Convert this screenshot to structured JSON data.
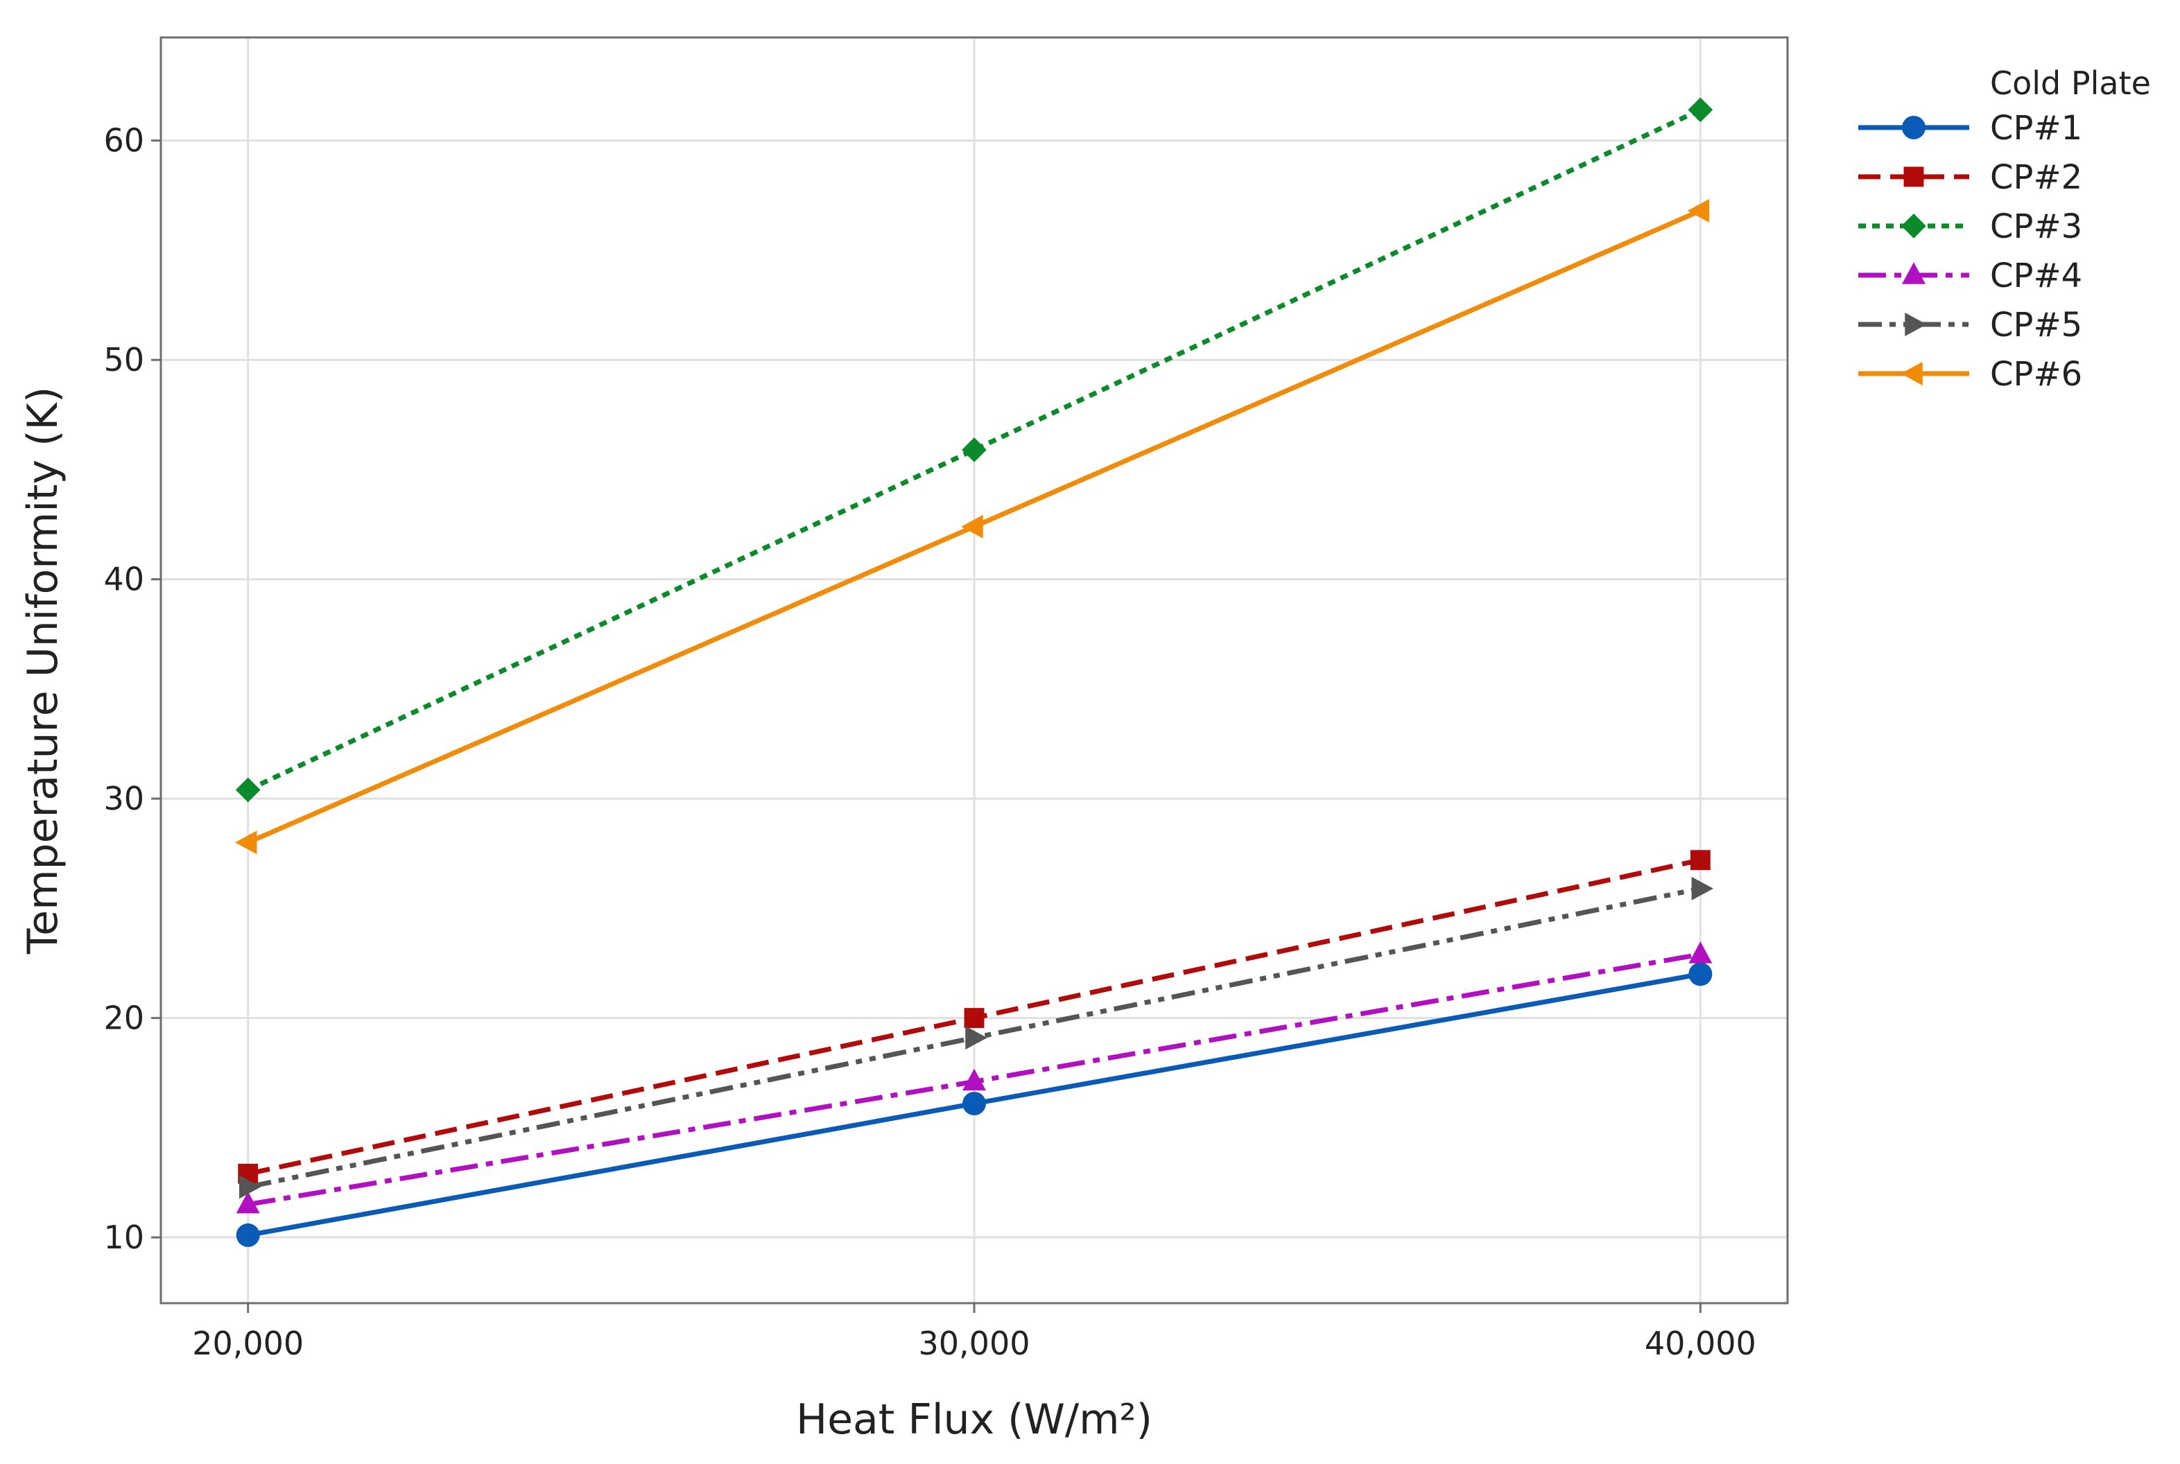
{
  "chart_data": {
    "type": "line",
    "title": "",
    "xlabel": "Heat Flux (W/m²)",
    "ylabel": "Temperature Uniformity (K)",
    "x": [
      20000,
      30000,
      40000
    ],
    "x_tick_labels": [
      "20,000",
      "30,000",
      "40,000"
    ],
    "xlim": [
      18800,
      41200
    ],
    "y_ticks": [
      10,
      20,
      30,
      40,
      50,
      60
    ],
    "y_tick_labels": [
      "10",
      "20",
      "30",
      "40",
      "50",
      "60"
    ],
    "ylim": [
      7,
      64.7
    ],
    "grid": true,
    "legend": {
      "title": "Cold Plate",
      "placement": "right"
    },
    "series": [
      {
        "name": "CP#1",
        "values": [
          10.1,
          16.1,
          22.0
        ],
        "color": "#0a5bb5",
        "dash": "solid",
        "marker": "circle"
      },
      {
        "name": "CP#2",
        "values": [
          12.9,
          20.0,
          27.2
        ],
        "color": "#b00a0a",
        "dash": "dashed",
        "marker": "square"
      },
      {
        "name": "CP#3",
        "values": [
          30.4,
          45.9,
          61.4
        ],
        "color": "#0a8a2a",
        "dash": "dotted",
        "marker": "diamond"
      },
      {
        "name": "CP#4",
        "values": [
          11.5,
          17.1,
          22.9
        ],
        "color": "#b010c0",
        "dash": "dashdot",
        "marker": "triangle-up"
      },
      {
        "name": "CP#5",
        "values": [
          12.3,
          19.1,
          25.9
        ],
        "color": "#555555",
        "dash": "dashdotdot",
        "marker": "triangle-right"
      },
      {
        "name": "CP#6",
        "values": [
          28.0,
          42.4,
          56.8
        ],
        "color": "#f08c0a",
        "dash": "solid",
        "marker": "triangle-left"
      }
    ]
  }
}
